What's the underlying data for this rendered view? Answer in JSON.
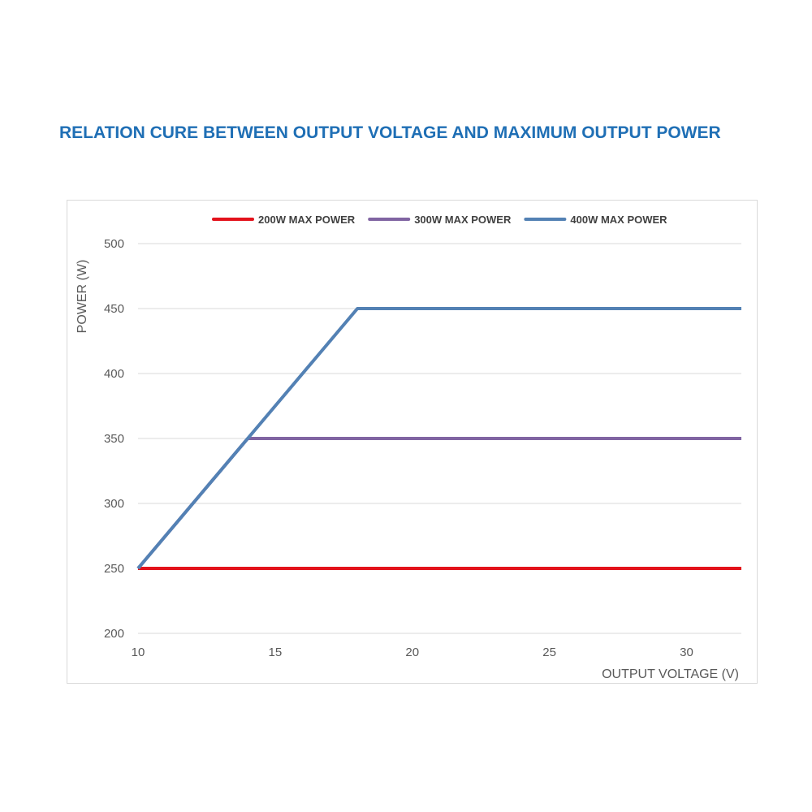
{
  "title": "RELATION CURE BETWEEN OUTPUT VOLTAGE AND MAXIMUM OUTPUT POWER",
  "colors": {
    "title": "#1f6fb5",
    "grid": "#d9d9d9",
    "text": "#595959"
  },
  "chart_data": {
    "type": "line",
    "xlabel": "OUTPUT VOLTAGE (V)",
    "ylabel": "POWER (W)",
    "xlim": [
      10,
      32
    ],
    "ylim": [
      200,
      500
    ],
    "xticks": [
      10,
      15,
      20,
      25,
      30
    ],
    "yticks": [
      200,
      250,
      300,
      350,
      400,
      450,
      500
    ],
    "grid": "horizontal",
    "legend_position": "top",
    "series": [
      {
        "name": "200W MAX POWER",
        "color": "#e3121b",
        "points": [
          [
            10,
            250
          ],
          [
            32,
            250
          ]
        ]
      },
      {
        "name": "300W MAX POWER",
        "color": "#8064a2",
        "points": [
          [
            10,
            250
          ],
          [
            14,
            350
          ],
          [
            32,
            350
          ]
        ]
      },
      {
        "name": "400W MAX POWER",
        "color": "#5381b4",
        "points": [
          [
            10,
            250
          ],
          [
            18,
            450
          ],
          [
            32,
            450
          ]
        ]
      }
    ]
  }
}
